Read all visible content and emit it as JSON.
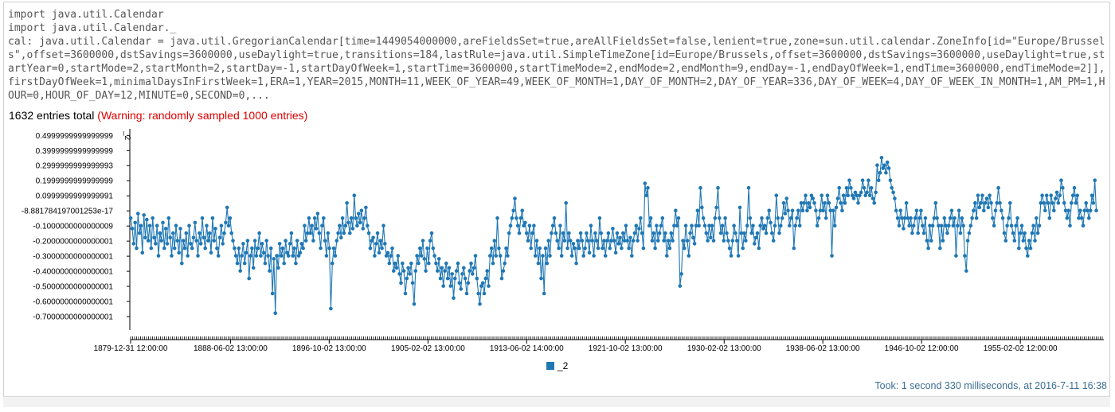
{
  "code_output": {
    "lines": [
      "import java.util.Calendar",
      "import java.util.Calendar._",
      "cal: java.util.Calendar = java.util.GregorianCalendar[time=1449054000000,areFieldsSet=true,areAllFieldsSet=false,lenient=true,zone=sun.util.calendar.ZoneInfo[id=\"Europe/Brussels\",offset=3600000,dstSavings=3600000,useDaylight=true,transitions=184,lastRule=java.util.SimpleTimeZone[id=Europe/Brussels,offset=3600000,dstSavings=3600000,useDaylight=true,startYear=0,startMode=2,startMonth=2,startDay=-1,startDayOfWeek=1,startTime=3600000,startTimeMode=2,endMode=2,endMonth=9,endDay=-1,endDayOfWeek=1,endTime=3600000,endTimeMode=2]],firstDayOfWeek=1,minimalDaysInFirstWeek=1,ERA=1,YEAR=2015,MONTH=11,WEEK_OF_YEAR=49,WEEK_OF_MONTH=1,DAY_OF_MONTH=2,DAY_OF_YEAR=336,DAY_OF_WEEK=4,DAY_OF_WEEK_IN_MONTH=1,AM_PM=1,HOUR=0,HOUR_OF_DAY=12,MINUTE=0,SECOND=0,..."
    ]
  },
  "summary": {
    "total": "1632 entries total",
    "warning": "(Warning: randomly sampled 1000 entries)"
  },
  "footer": {
    "took": "Took: 1 second 330 milliseconds, at 2016-7-11 16:38"
  },
  "colors": {
    "series": "#1f77b4",
    "warning": "#e00000",
    "footer": "#3b6e93"
  },
  "chart_data": {
    "type": "line",
    "ylabel": "_2",
    "ylim": [
      -0.75,
      0.52
    ],
    "y_ticks": [
      {
        "value": 0.5,
        "label": "0.4999999999999999"
      },
      {
        "value": 0.4,
        "label": "0.3999999999999999"
      },
      {
        "value": 0.3,
        "label": "0.2999999999999993"
      },
      {
        "value": 0.2,
        "label": "0.1999999999999999"
      },
      {
        "value": 0.1,
        "label": "0.0999999999999991"
      },
      {
        "value": 0.0,
        "label": "-8.881784197001253e-17"
      },
      {
        "value": -0.1,
        "label": "-0.1000000000000009"
      },
      {
        "value": -0.2,
        "label": "-0.2000000000000001"
      },
      {
        "value": -0.3,
        "label": "-0.3000000000000001"
      },
      {
        "value": -0.4,
        "label": "-0.4000000000000001"
      },
      {
        "value": -0.5,
        "label": "-0.5000000000000001"
      },
      {
        "value": -0.6,
        "label": "-0.6000000000000001"
      },
      {
        "value": -0.7,
        "label": "-0.7000000000000001"
      }
    ],
    "x_range_years": [
      1879.99,
      1961.6
    ],
    "x_ticks": [
      {
        "year": 1879.99,
        "label": "1879-12-31 12:00:00"
      },
      {
        "year": 1888.42,
        "label": "1888-06-02 13:00:00"
      },
      {
        "year": 1896.75,
        "label": "1896-10-02 13:00:00"
      },
      {
        "year": 1905.09,
        "label": "1905-02-02 13:00:00"
      },
      {
        "year": 1913.42,
        "label": "1913-06-02 14:00:00"
      },
      {
        "year": 1921.75,
        "label": "1921-10-02 13:00:00"
      },
      {
        "year": 1930.09,
        "label": "1930-02-02 13:00:00"
      },
      {
        "year": 1938.42,
        "label": "1938-06-02 13:00:00"
      },
      {
        "year": 1946.75,
        "label": "1946-10-02 12:00:00"
      },
      {
        "year": 1955.09,
        "label": "1955-02-02 12:00:00"
      }
    ],
    "series": [
      {
        "name": "_2",
        "x_start_year": 1880.0,
        "x_end_year": 1961.5,
        "values": [
          -0.05,
          -0.12,
          -0.22,
          -0.08,
          -0.25,
          -0.02,
          -0.15,
          -0.1,
          -0.28,
          -0.03,
          -0.18,
          -0.06,
          -0.2,
          -0.1,
          -0.25,
          -0.05,
          -0.18,
          -0.22,
          -0.1,
          -0.3,
          -0.15,
          -0.2,
          -0.08,
          -0.25,
          -0.12,
          -0.22,
          -0.05,
          -0.18,
          -0.3,
          -0.15,
          -0.25,
          -0.1,
          -0.2,
          -0.28,
          -0.12,
          -0.35,
          -0.2,
          -0.25,
          -0.15,
          -0.3,
          -0.1,
          -0.22,
          -0.25,
          -0.18,
          -0.08,
          -0.2,
          -0.3,
          -0.15,
          -0.22,
          -0.05,
          -0.18,
          -0.25,
          -0.1,
          -0.2,
          -0.15,
          -0.28,
          -0.05,
          -0.2,
          -0.12,
          -0.25,
          -0.3,
          -0.18,
          -0.1,
          -0.22,
          -0.15,
          -0.08,
          0.02,
          -0.1,
          -0.05,
          -0.15,
          -0.2,
          -0.25,
          -0.3,
          -0.35,
          -0.25,
          -0.4,
          -0.3,
          -0.22,
          -0.35,
          -0.28,
          -0.2,
          -0.45,
          -0.3,
          -0.25,
          -0.38,
          -0.2,
          -0.3,
          -0.25,
          -0.15,
          -0.3,
          -0.22,
          -0.28,
          -0.35,
          -0.2,
          -0.3,
          -0.4,
          -0.25,
          -0.55,
          -0.32,
          -0.68,
          -0.3,
          -0.38,
          -0.22,
          -0.3,
          -0.25,
          -0.35,
          -0.2,
          -0.28,
          -0.3,
          -0.22,
          -0.15,
          -0.3,
          -0.25,
          -0.35,
          -0.2,
          -0.3,
          -0.28,
          -0.22,
          -0.25,
          -0.1,
          -0.2,
          -0.15,
          -0.05,
          -0.15,
          -0.1,
          -0.2,
          -0.05,
          -0.12,
          -0.02,
          -0.15,
          -0.25,
          -0.1,
          -0.05,
          -0.2,
          -0.3,
          -0.15,
          -0.25,
          -0.65,
          -0.35,
          -0.25,
          -0.3,
          -0.2,
          -0.15,
          -0.1,
          -0.18,
          -0.05,
          -0.15,
          -0.1,
          0.05,
          -0.08,
          -0.15,
          -0.05,
          -0.12,
          0.1,
          -0.05,
          -0.1,
          -0.02,
          -0.08,
          0.0,
          -0.12,
          -0.05,
          0.02,
          -0.1,
          -0.15,
          -0.25,
          -0.2,
          -0.18,
          -0.3,
          -0.22,
          -0.15,
          -0.28,
          -0.2,
          -0.25,
          -0.1,
          -0.22,
          -0.3,
          -0.28,
          -0.35,
          -0.3,
          -0.25,
          -0.4,
          -0.35,
          -0.38,
          -0.3,
          -0.42,
          -0.48,
          -0.35,
          -0.4,
          -0.55,
          -0.45,
          -0.38,
          -0.42,
          -0.35,
          -0.48,
          -0.62,
          -0.4,
          -0.3,
          -0.35,
          -0.25,
          -0.3,
          -0.2,
          -0.32,
          -0.4,
          -0.25,
          -0.35,
          -0.2,
          -0.15,
          -0.25,
          -0.3,
          -0.35,
          -0.4,
          -0.32,
          -0.45,
          -0.38,
          -0.5,
          -0.4,
          -0.35,
          -0.45,
          -0.38,
          -0.5,
          -0.42,
          -0.58,
          -0.45,
          -0.4,
          -0.35,
          -0.48,
          -0.52,
          -0.42,
          -0.38,
          -0.45,
          -0.55,
          -0.48,
          -0.4,
          -0.35,
          -0.42,
          -0.38,
          -0.3,
          -0.45,
          -0.55,
          -0.62,
          -0.5,
          -0.48,
          -0.55,
          -0.45,
          -0.4,
          -0.5,
          -0.3,
          -0.25,
          -0.35,
          -0.2,
          -0.3,
          -0.05,
          -0.25,
          -0.3,
          -0.45,
          -0.4,
          -0.35,
          -0.25,
          -0.3,
          -0.15,
          -0.1,
          -0.05,
          0.0,
          0.08,
          -0.05,
          -0.1,
          -0.15,
          -0.05,
          0.0,
          -0.1,
          -0.08,
          -0.15,
          -0.2,
          -0.1,
          -0.25,
          -0.15,
          -0.1,
          -0.3,
          -0.2,
          -0.35,
          -0.25,
          -0.45,
          -0.3,
          -0.55,
          -0.25,
          -0.35,
          -0.2,
          -0.3,
          -0.15,
          -0.1,
          -0.05,
          -0.15,
          -0.2,
          -0.25,
          -0.1,
          -0.3,
          -0.15,
          -0.2,
          0.05,
          -0.25,
          -0.15,
          -0.2,
          -0.3,
          -0.22,
          -0.25,
          -0.35,
          -0.2,
          -0.25,
          -0.15,
          -0.2,
          -0.3,
          -0.25,
          -0.15,
          -0.2,
          -0.28,
          -0.1,
          -0.2,
          -0.3,
          -0.15,
          -0.2,
          -0.25,
          -0.05,
          -0.15,
          -0.25,
          -0.2,
          -0.3,
          -0.2,
          -0.15,
          -0.25,
          -0.2,
          -0.12,
          -0.2,
          -0.28,
          -0.15,
          -0.22,
          -0.18,
          -0.25,
          -0.15,
          -0.2,
          -0.1,
          -0.2,
          -0.25,
          -0.18,
          -0.3,
          -0.2,
          -0.15,
          -0.1,
          -0.2,
          -0.12,
          -0.05,
          -0.15,
          -0.25,
          0.18,
          0.1,
          0.15,
          -0.1,
          -0.05,
          -0.2,
          -0.15,
          -0.25,
          -0.1,
          -0.2,
          -0.15,
          -0.1,
          -0.05,
          -0.2,
          -0.15,
          -0.3,
          -0.2,
          -0.25,
          -0.15,
          -0.2,
          -0.1,
          0.0,
          -0.1,
          -0.05,
          -0.5,
          -0.42,
          -0.2,
          -0.25,
          -0.1,
          -0.2,
          -0.3,
          -0.15,
          -0.1,
          -0.18,
          -0.22,
          -0.1,
          0.0,
          -0.1,
          0.15,
          0.02,
          -0.05,
          -0.1,
          -0.15,
          -0.2,
          -0.1,
          -0.18,
          -0.1,
          -0.2,
          -0.05,
          0.02,
          0.15,
          -0.05,
          -0.15,
          -0.1,
          -0.2,
          -0.05,
          -0.15,
          -0.2,
          -0.25,
          -0.3,
          -0.2,
          -0.1,
          -0.15,
          -0.2,
          -0.3,
          0.02,
          -0.15,
          -0.25,
          -0.15,
          -0.2,
          -0.1,
          0.15,
          -0.05,
          -0.15,
          -0.1,
          -0.22,
          -0.18,
          -0.15,
          -0.25,
          -0.1,
          -0.05,
          -0.12,
          -0.1,
          -0.15,
          -0.05,
          0.0,
          -0.08,
          -0.15,
          -0.2,
          -0.1,
          0.1,
          -0.05,
          -0.15,
          -0.1,
          -0.05,
          0.05,
          -0.02,
          0.08,
          0.0,
          -0.1,
          -0.05,
          0.0,
          -0.25,
          -0.1,
          -0.05,
          0.0,
          -0.1,
          0.05,
          0.0,
          0.05,
          0.1,
          0.0,
          0.05,
          0.02,
          0.1,
          0.08,
          0.05,
          0.0,
          -0.1,
          -0.05,
          0.0,
          0.1,
          0.0,
          0.05,
          -0.05,
          0.1,
          0.05,
          0.0,
          -0.3,
          0.0,
          -0.1,
          0.02,
          0.08,
          0.15,
          0.05,
          0.0,
          0.1,
          0.05,
          0.15,
          0.1,
          0.2,
          0.15,
          0.1,
          0.08,
          0.12,
          0.1,
          0.05,
          0.1,
          0.12,
          0.2,
          0.15,
          0.1,
          0.12,
          0.2,
          0.1,
          0.15,
          0.08,
          0.05,
          0.12,
          0.3,
          0.2,
          0.25,
          0.35,
          0.28,
          0.3,
          0.25,
          0.32,
          0.28,
          0.2,
          0.15,
          0.12,
          0.08,
          0.0,
          -0.05,
          -0.1,
          0.0,
          -0.05,
          -0.12,
          -0.05,
          0.05,
          -0.05,
          -0.1,
          -0.05,
          -0.15,
          -0.1,
          -0.05,
          0.0,
          -0.15,
          -0.05,
          0.0,
          -0.1,
          -0.15,
          -0.05,
          -0.2,
          -0.25,
          -0.1,
          -0.2,
          -0.1,
          -0.05,
          0.05,
          -0.05,
          -0.1,
          -0.25,
          -0.1,
          -0.2,
          -0.05,
          -0.1,
          -0.15,
          -0.1,
          -0.05,
          0.0,
          -0.1,
          -0.05,
          -0.3,
          -0.1,
          0.0,
          -0.15,
          -0.05,
          -0.1,
          -0.3,
          -0.4,
          -0.2,
          -0.15,
          -0.1,
          -0.05,
          0.0,
          0.05,
          -0.05,
          0.1,
          0.02,
          0.05,
          0.1,
          0.0,
          0.05,
          0.08,
          0.02,
          0.1,
          0.05,
          -0.05,
          -0.1,
          0.0,
          0.05,
          0.15,
          0.05,
          0.0,
          -0.05,
          -0.15,
          -0.2,
          -0.1,
          -0.05,
          0.05,
          -0.1,
          -0.15,
          -0.2,
          -0.1,
          -0.05,
          -0.25,
          -0.15,
          -0.1,
          -0.2,
          -0.15,
          -0.25,
          -0.3,
          -0.2,
          -0.25,
          -0.15,
          -0.1,
          -0.2,
          -0.05,
          -0.15,
          -0.1,
          0.05,
          0.1,
          0.05,
          0.0,
          0.1,
          0.05,
          -0.05,
          0.1,
          0.05,
          0.0,
          0.08,
          0.12,
          0.05,
          0.1,
          0.2,
          0.15,
          0.05,
          0.0,
          -0.05,
          0.0,
          -0.1,
          0.05,
          0.1,
          0.15,
          0.05,
          0.1,
          -0.05,
          0.0,
          -0.05,
          -0.1,
          0.0,
          0.05,
          0.0,
          -0.05,
          0.0,
          0.1,
          0.05,
          0.2,
          0.0
        ]
      }
    ]
  }
}
